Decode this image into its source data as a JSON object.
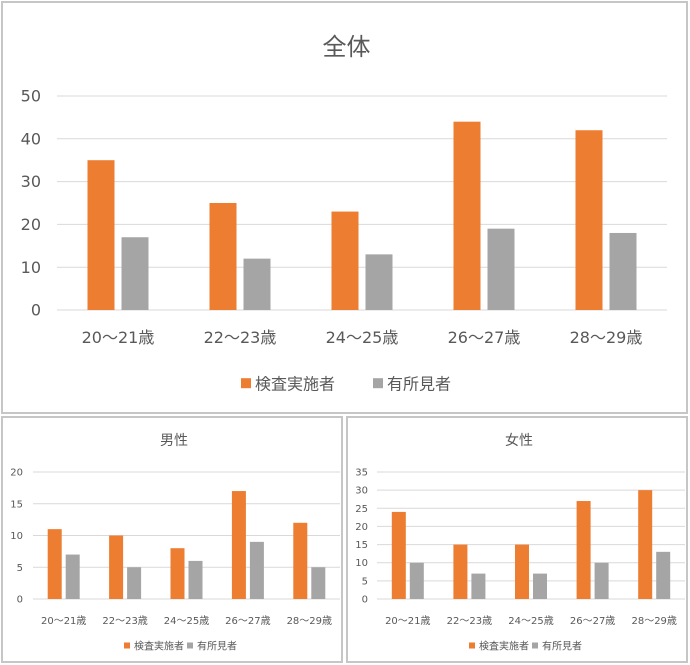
{
  "colors": {
    "series1": "#ed7d31",
    "series2": "#a5a5a5",
    "grid": "#d9d9d9",
    "text": "#595959"
  },
  "chart_data": [
    {
      "type": "bar",
      "title": "全体",
      "categories": [
        "20～21歳",
        "22～23歳",
        "24～25歳",
        "26～27歳",
        "28～29歳"
      ],
      "series": [
        {
          "name": "検査実施者",
          "values": [
            35,
            25,
            23,
            44,
            42
          ]
        },
        {
          "name": "有所見者",
          "values": [
            17,
            12,
            13,
            19,
            18
          ]
        }
      ],
      "ylim": [
        0,
        50
      ],
      "yticks": [
        "0",
        "10",
        "20",
        "30",
        "40",
        "50"
      ],
      "grid": true,
      "legend": "bottom"
    },
    {
      "type": "bar",
      "title": "男性",
      "categories": [
        "20～21歳",
        "22～23歳",
        "24～25歳",
        "26～27歳",
        "28～29歳"
      ],
      "series": [
        {
          "name": "検査実施者",
          "values": [
            11,
            10,
            8,
            17,
            12
          ]
        },
        {
          "name": "有所見者",
          "values": [
            7,
            5,
            6,
            9,
            5
          ]
        }
      ],
      "ylim": [
        0,
        20
      ],
      "yticks": [
        "0",
        "5",
        "10",
        "15",
        "20"
      ],
      "grid": true,
      "legend": "bottom"
    },
    {
      "type": "bar",
      "title": "女性",
      "categories": [
        "20～21歳",
        "22～23歳",
        "24～25歳",
        "26～27歳",
        "28～29歳"
      ],
      "series": [
        {
          "name": "検査実施者",
          "values": [
            24,
            15,
            15,
            27,
            30
          ]
        },
        {
          "name": "有所見者",
          "values": [
            10,
            7,
            7,
            10,
            13
          ]
        }
      ],
      "ylim": [
        0,
        35
      ],
      "yticks": [
        "0",
        "5",
        "10",
        "15",
        "20",
        "25",
        "30",
        "35"
      ],
      "grid": true,
      "legend": "bottom"
    }
  ]
}
